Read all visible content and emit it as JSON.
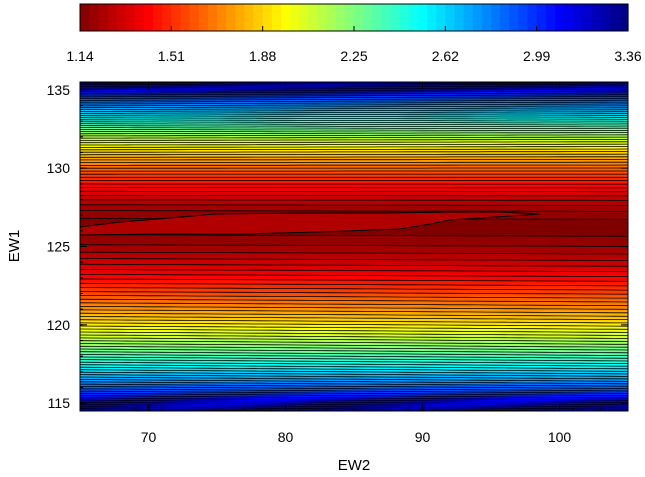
{
  "chart_data": {
    "type": "heatmap",
    "subtype": "filled-contour",
    "colormap": "jet-reversed",
    "title": "",
    "xlabel": "EW2",
    "ylabel": "EW1",
    "xlim": [
      65,
      105
    ],
    "ylim": [
      114.5,
      135.5
    ],
    "x_ticks": [
      "70",
      "80",
      "90",
      "100"
    ],
    "x_tick_values": [
      70,
      80,
      90,
      100
    ],
    "y_ticks": [
      "115",
      "120",
      "125",
      "130",
      "135"
    ],
    "y_tick_values": [
      115,
      120,
      125,
      130,
      135
    ],
    "colorbar": {
      "position": "top",
      "min": 1.14,
      "max": 3.36,
      "tick_labels": [
        "1.14",
        "1.51",
        "1.88",
        "2.25",
        "2.62",
        "2.99",
        "3.36"
      ],
      "tick_values": [
        1.14,
        1.51,
        1.88,
        2.25,
        2.62,
        2.99,
        3.36
      ],
      "low_color": "#800000",
      "high_color": "#00008f"
    },
    "minimum": {
      "description": "elongated minimum valley",
      "ew1_center": 126.3,
      "ew2_range": [
        65,
        98.5
      ],
      "value": 1.14
    },
    "contour_levels": 55,
    "grid": false,
    "legend": "none"
  }
}
